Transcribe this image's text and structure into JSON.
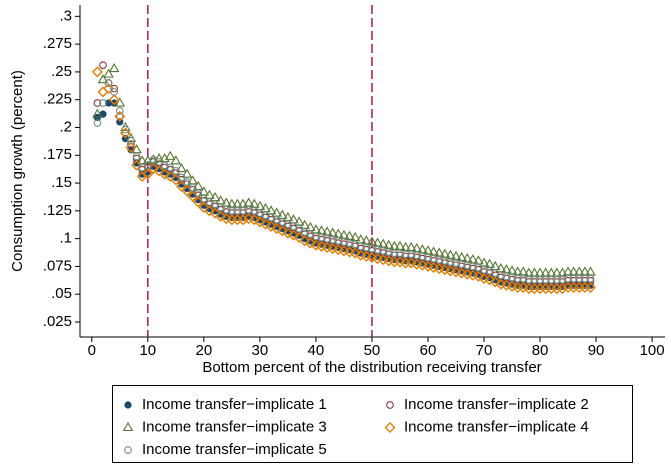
{
  "chart_data": {
    "type": "scatter",
    "y_label": "Consumption growth (percent)",
    "x_label": "Bottom percent of the distribution receiving transfer",
    "xlim": [
      -2.1,
      102.3
    ],
    "ylim": [
      0.0115,
      0.3102
    ],
    "xticks": [
      0,
      10,
      20,
      30,
      40,
      50,
      60,
      70,
      80,
      90,
      100
    ],
    "yticks": [
      {
        "value": 0.025,
        "label": ".025"
      },
      {
        "value": 0.05,
        "label": ".05"
      },
      {
        "value": 0.075,
        "label": ".075"
      },
      {
        "value": 0.1,
        "label": ".1"
      },
      {
        "value": 0.125,
        "label": ".125"
      },
      {
        "value": 0.15,
        "label": ".15"
      },
      {
        "value": 0.175,
        "label": ".175"
      },
      {
        "value": 0.2,
        "label": ".2"
      },
      {
        "value": 0.225,
        "label": ".225"
      },
      {
        "value": 0.25,
        "label": ".25"
      },
      {
        "value": 0.275,
        "label": ".275"
      },
      {
        "value": 0.3,
        "label": ".3"
      }
    ],
    "vlines": [
      10,
      50
    ],
    "legend": "bottom",
    "x": [
      1,
      2,
      3,
      4,
      5,
      6,
      7,
      8,
      9,
      10,
      11,
      12,
      13,
      14,
      15,
      16,
      17,
      18,
      19,
      20,
      21,
      22,
      23,
      24,
      25,
      26,
      27,
      28,
      29,
      30,
      31,
      32,
      33,
      34,
      35,
      36,
      37,
      38,
      39,
      40,
      41,
      42,
      43,
      44,
      45,
      46,
      47,
      48,
      49,
      50,
      51,
      52,
      53,
      54,
      55,
      56,
      57,
      58,
      59,
      60,
      61,
      62,
      63,
      64,
      65,
      66,
      67,
      68,
      69,
      70,
      71,
      72,
      73,
      74,
      75,
      76,
      77,
      78,
      79,
      80,
      81,
      82,
      83,
      84,
      85,
      86,
      87,
      88,
      89
    ],
    "series": [
      {
        "name": "Income transfer−implicate 1",
        "color": "#1a476f",
        "marker": "circle-filled",
        "values": [
          0.209,
          0.212,
          0.222,
          0.222,
          0.205,
          0.19,
          0.18,
          0.168,
          0.158,
          0.16,
          0.165,
          0.163,
          0.16,
          0.158,
          0.155,
          0.149,
          0.145,
          0.14,
          0.135,
          0.13,
          0.127,
          0.125,
          0.122,
          0.12,
          0.119,
          0.119,
          0.119,
          0.12,
          0.119,
          0.117,
          0.115,
          0.113,
          0.111,
          0.109,
          0.107,
          0.105,
          0.103,
          0.1,
          0.098,
          0.096,
          0.095,
          0.094,
          0.093,
          0.092,
          0.091,
          0.09,
          0.089,
          0.087,
          0.086,
          0.085,
          0.084,
          0.083,
          0.082,
          0.081,
          0.081,
          0.08,
          0.08,
          0.079,
          0.078,
          0.077,
          0.076,
          0.075,
          0.074,
          0.073,
          0.072,
          0.071,
          0.07,
          0.069,
          0.068,
          0.066,
          0.065,
          0.063,
          0.061,
          0.06,
          0.059,
          0.058,
          0.058,
          0.057,
          0.057,
          0.057,
          0.057,
          0.057,
          0.057,
          0.057,
          0.058,
          0.058,
          0.058,
          0.058,
          0.058
        ]
      },
      {
        "name": "Income transfer−implicate 2",
        "color": "#90353b",
        "marker": "circle",
        "values": [
          0.222,
          0.256,
          0.24,
          0.235,
          0.21,
          0.195,
          0.185,
          0.172,
          0.162,
          0.164,
          0.169,
          0.167,
          0.164,
          0.162,
          0.159,
          0.153,
          0.149,
          0.144,
          0.139,
          0.134,
          0.131,
          0.129,
          0.126,
          0.124,
          0.123,
          0.123,
          0.123,
          0.124,
          0.123,
          0.121,
          0.119,
          0.117,
          0.115,
          0.113,
          0.111,
          0.109,
          0.107,
          0.104,
          0.102,
          0.1,
          0.099,
          0.098,
          0.097,
          0.096,
          0.095,
          0.094,
          0.093,
          0.091,
          0.09,
          0.089,
          0.088,
          0.087,
          0.086,
          0.085,
          0.085,
          0.084,
          0.084,
          0.083,
          0.082,
          0.081,
          0.08,
          0.079,
          0.078,
          0.077,
          0.076,
          0.075,
          0.074,
          0.073,
          0.072,
          0.07,
          0.069,
          0.067,
          0.065,
          0.064,
          0.063,
          0.062,
          0.062,
          0.061,
          0.061,
          0.061,
          0.061,
          0.061,
          0.061,
          0.061,
          0.062,
          0.062,
          0.062,
          0.062,
          0.062
        ]
      },
      {
        "name": "Income transfer−implicate 3",
        "color": "#55752f",
        "marker": "triangle",
        "values": [
          0.212,
          0.243,
          0.248,
          0.253,
          0.222,
          0.2,
          0.19,
          0.18,
          0.17,
          0.17,
          0.171,
          0.172,
          0.172,
          0.174,
          0.17,
          0.163,
          0.158,
          0.152,
          0.147,
          0.142,
          0.139,
          0.137,
          0.134,
          0.132,
          0.131,
          0.131,
          0.131,
          0.132,
          0.131,
          0.129,
          0.127,
          0.125,
          0.123,
          0.121,
          0.119,
          0.117,
          0.115,
          0.112,
          0.11,
          0.108,
          0.107,
          0.106,
          0.105,
          0.104,
          0.103,
          0.102,
          0.101,
          0.099,
          0.098,
          0.097,
          0.096,
          0.095,
          0.094,
          0.093,
          0.093,
          0.092,
          0.092,
          0.091,
          0.09,
          0.089,
          0.088,
          0.087,
          0.086,
          0.085,
          0.084,
          0.083,
          0.082,
          0.081,
          0.08,
          0.078,
          0.077,
          0.075,
          0.073,
          0.072,
          0.071,
          0.07,
          0.07,
          0.069,
          0.069,
          0.069,
          0.069,
          0.069,
          0.069,
          0.069,
          0.07,
          0.07,
          0.07,
          0.07,
          0.07
        ]
      },
      {
        "name": "Income transfer−implicate 4",
        "color": "#e37e00",
        "marker": "diamond",
        "values": [
          0.25,
          0.232,
          0.235,
          0.225,
          0.21,
          0.195,
          0.182,
          0.166,
          0.156,
          0.158,
          0.163,
          0.161,
          0.158,
          0.156,
          0.153,
          0.147,
          0.143,
          0.138,
          0.133,
          0.128,
          0.125,
          0.123,
          0.12,
          0.118,
          0.117,
          0.117,
          0.117,
          0.118,
          0.117,
          0.115,
          0.113,
          0.111,
          0.109,
          0.107,
          0.105,
          0.103,
          0.101,
          0.098,
          0.096,
          0.094,
          0.093,
          0.092,
          0.091,
          0.09,
          0.089,
          0.088,
          0.087,
          0.085,
          0.084,
          0.083,
          0.082,
          0.081,
          0.08,
          0.079,
          0.079,
          0.078,
          0.078,
          0.077,
          0.076,
          0.075,
          0.074,
          0.073,
          0.072,
          0.071,
          0.07,
          0.069,
          0.068,
          0.067,
          0.066,
          0.064,
          0.063,
          0.061,
          0.059,
          0.058,
          0.057,
          0.056,
          0.056,
          0.055,
          0.055,
          0.055,
          0.055,
          0.055,
          0.055,
          0.055,
          0.056,
          0.056,
          0.056,
          0.056,
          0.056
        ]
      },
      {
        "name": "Income transfer−implicate 5",
        "color": "#6e8e84",
        "marker": "circle",
        "values": [
          0.204,
          0.222,
          0.24,
          0.232,
          0.215,
          0.198,
          0.188,
          0.174,
          0.164,
          0.166,
          0.171,
          0.169,
          0.166,
          0.164,
          0.161,
          0.155,
          0.151,
          0.146,
          0.141,
          0.136,
          0.133,
          0.131,
          0.128,
          0.126,
          0.125,
          0.125,
          0.125,
          0.126,
          0.125,
          0.123,
          0.121,
          0.119,
          0.117,
          0.115,
          0.113,
          0.111,
          0.109,
          0.106,
          0.104,
          0.102,
          0.101,
          0.1,
          0.099,
          0.098,
          0.097,
          0.096,
          0.095,
          0.093,
          0.092,
          0.091,
          0.09,
          0.089,
          0.088,
          0.087,
          0.087,
          0.086,
          0.086,
          0.085,
          0.084,
          0.083,
          0.082,
          0.081,
          0.08,
          0.079,
          0.078,
          0.077,
          0.076,
          0.075,
          0.074,
          0.072,
          0.071,
          0.069,
          0.067,
          0.066,
          0.065,
          0.064,
          0.064,
          0.063,
          0.063,
          0.063,
          0.063,
          0.063,
          0.063,
          0.063,
          0.064,
          0.064,
          0.064,
          0.064,
          0.064
        ]
      }
    ]
  }
}
